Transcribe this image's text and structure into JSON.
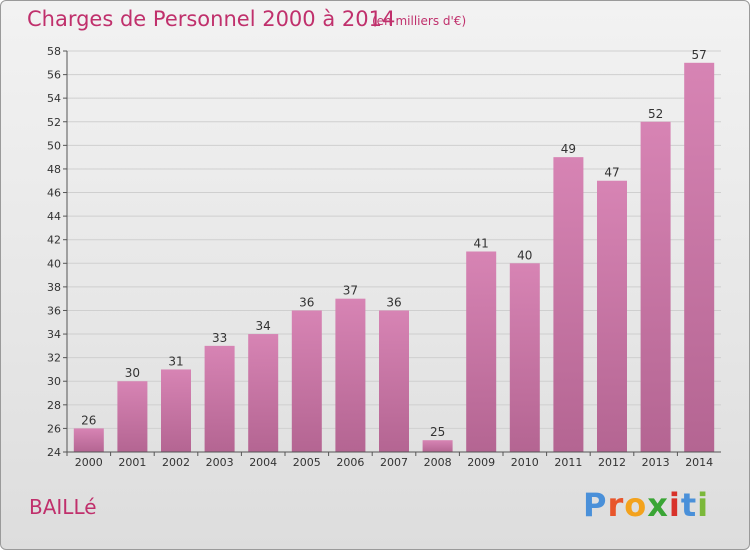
{
  "page": {
    "title": "Charges de Personnel 2000 à 2014",
    "subtitle": "(en milliers d'€)",
    "commune": "BAILLé",
    "logo_text": "Proxiti",
    "logo_colors": [
      "#4a90d9",
      "#e8552b",
      "#f3a21d",
      "#3aa535",
      "#d8322a",
      "#4a90d9",
      "#7bb83a"
    ]
  },
  "chart_data": {
    "type": "bar",
    "title": "Charges de Personnel 2000 à 2014",
    "subtitle": "(en milliers d'€)",
    "xlabel": "",
    "ylabel": "",
    "categories": [
      "2000",
      "2001",
      "2002",
      "2003",
      "2004",
      "2005",
      "2006",
      "2007",
      "2008",
      "2009",
      "2010",
      "2011",
      "2012",
      "2013",
      "2014"
    ],
    "values": [
      26,
      30,
      31,
      33,
      34,
      36,
      37,
      36,
      25,
      41,
      40,
      49,
      47,
      52,
      57
    ],
    "ylim": [
      24,
      58
    ],
    "yticks": [
      24,
      26,
      28,
      30,
      32,
      34,
      36,
      38,
      40,
      42,
      44,
      46,
      48,
      50,
      52,
      54,
      56,
      58
    ],
    "grid": true,
    "bar_color": "#d784b4",
    "bar_color_dark": "#b46592",
    "grid_color": "#cfcfcf",
    "axis_color": "#555555",
    "title_color": "#c0306c"
  }
}
